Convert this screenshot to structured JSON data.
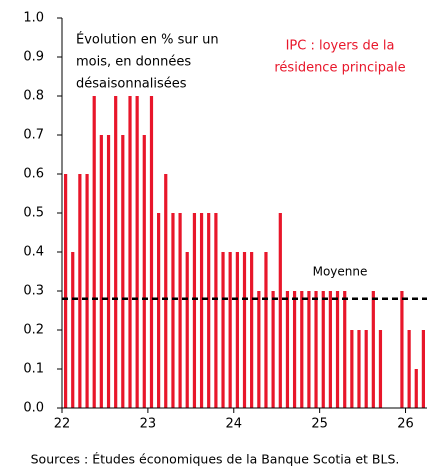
{
  "chart_data": {
    "type": "bar",
    "annotations": [
      "Évolution en % sur un",
      "mois, en données",
      "désaisonnalisées"
    ],
    "series_title": [
      "IPC : loyers de la",
      "résidence principale"
    ],
    "source": "Sources : Études économiques de la Banque Scotia et  BLS.",
    "color": "#e8162a",
    "x": [
      22.042,
      22.125,
      22.208,
      22.292,
      22.375,
      22.458,
      22.542,
      22.625,
      22.708,
      22.792,
      22.875,
      22.958,
      23.042,
      23.125,
      23.208,
      23.292,
      23.375,
      23.458,
      23.542,
      23.625,
      23.708,
      23.792,
      23.875,
      23.958,
      24.042,
      24.125,
      24.208,
      24.292,
      24.375,
      24.458,
      24.542,
      24.625,
      24.708,
      24.792,
      24.875,
      24.958,
      25.042,
      25.125,
      25.208,
      25.292,
      25.375,
      25.458,
      25.542,
      25.625,
      25.708,
      25.792,
      25.875,
      25.958,
      26.042,
      26.125,
      26.208
    ],
    "values": [
      0.6,
      0.4,
      0.6,
      0.6,
      0.8,
      0.7,
      0.7,
      0.8,
      0.7,
      0.8,
      0.8,
      0.7,
      0.8,
      0.5,
      0.6,
      0.5,
      0.5,
      0.4,
      0.5,
      0.5,
      0.5,
      0.5,
      0.4,
      0.4,
      0.4,
      0.4,
      0.4,
      0.3,
      0.4,
      0.3,
      0.5,
      0.3,
      0.3,
      0.3,
      0.3,
      0.3,
      0.3,
      0.3,
      0.3,
      0.3,
      0.2,
      0.2,
      0.2,
      0.3,
      0.2,
      null,
      null,
      0.3,
      0.2,
      0.1,
      0.2
    ],
    "average": 0.28,
    "average_label": "Moyenne",
    "xlim": [
      22,
      26.25
    ],
    "xticks": [
      22,
      23,
      24,
      25,
      26
    ],
    "ylim": [
      0,
      1
    ],
    "yticks": [
      {
        "value": 0,
        "label": "0.0"
      },
      0.1,
      0.2,
      0.3,
      0.4,
      0.5,
      0.6,
      0.7,
      0.8,
      0.9,
      {
        "value": 1,
        "label": "1.0"
      }
    ]
  }
}
